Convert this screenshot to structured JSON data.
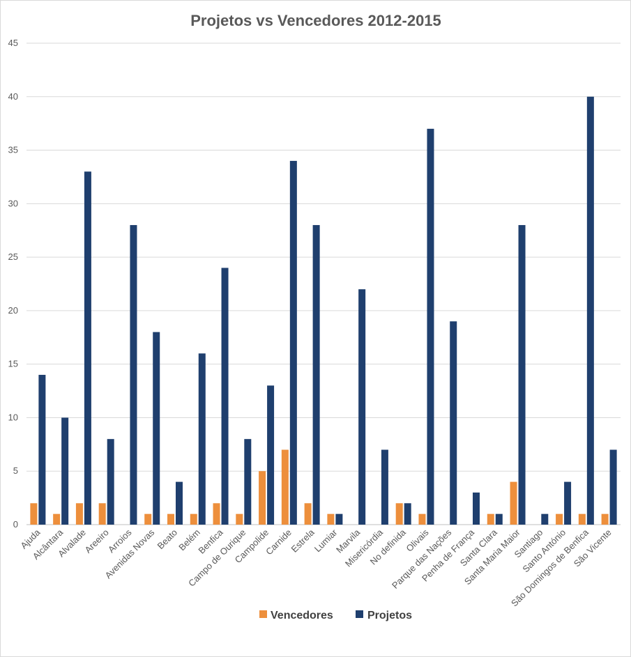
{
  "chart_data": {
    "type": "bar",
    "title": "Projetos vs Vencedores 2012-2015",
    "xlabel": "",
    "ylabel": "",
    "ylim": [
      0,
      45
    ],
    "yticks": [
      0,
      5,
      10,
      15,
      20,
      25,
      30,
      35,
      40,
      45
    ],
    "grid": true,
    "legend_position": "bottom",
    "categories": [
      "Ajuda",
      "Alcântara",
      "Alvalade",
      "Areeiro",
      "Arroios",
      "Avenidas Novas",
      "Beato",
      "Belém",
      "Benfica",
      "Campo de Ourique",
      "Campolide",
      "Carnide",
      "Estrela",
      "Lumiar",
      "Marvila",
      "Misericórdia",
      "No definida",
      "Olivais",
      "Parque das Nações",
      "Penha de França",
      "Santa Clara",
      "Santa Maria Maior",
      "Santiago",
      "Santo António",
      "São Domingos de Benfica",
      "São Vicente"
    ],
    "series": [
      {
        "name": "Vencedores",
        "color": "#ed8f3c",
        "values": [
          2,
          1,
          2,
          2,
          0,
          1,
          1,
          1,
          2,
          1,
          5,
          7,
          2,
          1,
          0,
          0,
          2,
          1,
          0,
          0,
          1,
          4,
          0,
          1,
          1,
          1
        ]
      },
      {
        "name": "Projetos",
        "color": "#1f3f6e",
        "values": [
          14,
          10,
          33,
          8,
          28,
          18,
          4,
          16,
          24,
          8,
          13,
          34,
          28,
          1,
          22,
          7,
          2,
          37,
          19,
          3,
          1,
          28,
          1,
          4,
          40,
          7
        ]
      }
    ]
  }
}
